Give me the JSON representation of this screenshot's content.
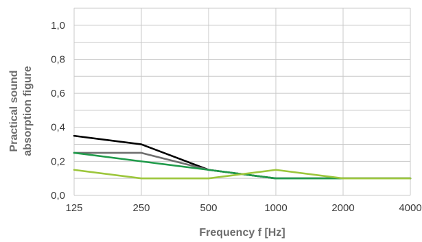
{
  "chart_data": {
    "type": "line",
    "xlabel": "Frequency f [Hz]",
    "ylabel_lines": [
      "Practical sound",
      "absorption figure"
    ],
    "categories": [
      "125",
      "250",
      "500",
      "1000",
      "2000",
      "4000"
    ],
    "y_ticks": [
      "0,0",
      "0,2",
      "0,4",
      "0,6",
      "0,8",
      "1,0"
    ],
    "ylim": [
      0,
      1.1
    ],
    "grid": true,
    "legend": "none",
    "series": [
      {
        "color": "#000000",
        "values": [
          0.35,
          0.3,
          0.15,
          0.1,
          0.1,
          0.1
        ]
      },
      {
        "color": "#6e6e6e",
        "values": [
          0.25,
          0.25,
          0.15,
          0.1,
          0.1,
          0.1
        ]
      },
      {
        "color": "#1f9a4a",
        "values": [
          0.25,
          0.2,
          0.15,
          0.1,
          0.1,
          0.1
        ]
      },
      {
        "color": "#9cc63b",
        "values": [
          0.15,
          0.1,
          0.1,
          0.15,
          0.1,
          0.1
        ]
      }
    ]
  }
}
